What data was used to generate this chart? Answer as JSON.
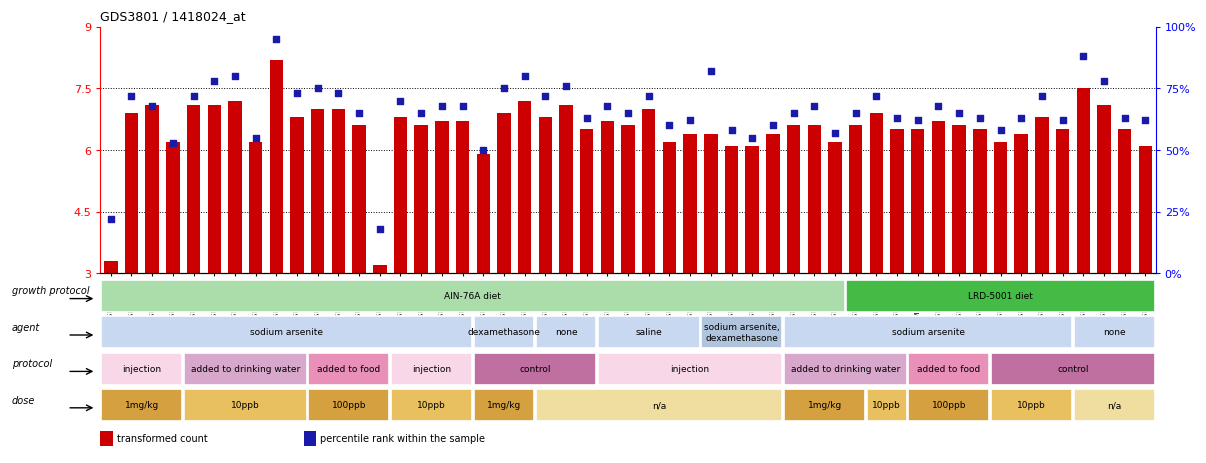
{
  "title": "GDS3801 / 1418024_at",
  "sample_ids": [
    "GSM279240",
    "GSM279245",
    "GSM279248",
    "GSM279250",
    "GSM279253",
    "GSM279234",
    "GSM279262",
    "GSM279269",
    "GSM279272",
    "GSM279231",
    "GSM279243",
    "GSM279261",
    "GSM279263",
    "GSM279230",
    "GSM279249",
    "GSM279258",
    "GSM279265",
    "GSM279273",
    "GSM279233",
    "GSM279236",
    "GSM279239",
    "GSM279247",
    "GSM279252",
    "GSM279232",
    "GSM279235",
    "GSM279264",
    "GSM279270",
    "GSM279275",
    "GSM279221",
    "GSM279260",
    "GSM279267",
    "GSM279271",
    "GSM279238",
    "GSM279241",
    "GSM279255",
    "GSM279268",
    "GSM279222",
    "GSM279226",
    "GSM279246",
    "GSM279249b",
    "GSM279266",
    "GSM279254",
    "GSM279257",
    "GSM279223",
    "GSM279228",
    "GSM279237",
    "GSM279242",
    "GSM279244",
    "GSM279225",
    "GSM279229",
    "GSM279256"
  ],
  "bar_values": [
    3.3,
    6.9,
    7.1,
    6.2,
    7.1,
    7.1,
    7.2,
    6.2,
    8.2,
    6.8,
    7.0,
    7.0,
    6.6,
    3.2,
    6.8,
    6.6,
    6.7,
    6.7,
    5.9,
    6.9,
    7.2,
    6.8,
    7.1,
    6.5,
    6.7,
    6.6,
    7.0,
    6.2,
    6.4,
    6.4,
    6.1,
    6.1,
    6.4,
    6.6,
    6.6,
    6.2,
    6.6,
    6.9,
    6.5,
    6.5,
    6.7,
    6.6,
    6.5,
    6.2,
    6.4,
    6.8,
    6.5,
    7.5,
    7.1,
    6.5,
    6.1
  ],
  "dot_values": [
    22,
    72,
    68,
    53,
    72,
    78,
    80,
    55,
    95,
    73,
    75,
    73,
    65,
    18,
    70,
    65,
    68,
    68,
    50,
    75,
    80,
    72,
    76,
    63,
    68,
    65,
    72,
    60,
    62,
    82,
    58,
    55,
    60,
    65,
    68,
    57,
    65,
    72,
    63,
    62,
    68,
    65,
    63,
    58,
    63,
    72,
    62,
    88,
    78,
    63,
    62
  ],
  "bar_color": "#cc0000",
  "dot_color": "#1a1aaa",
  "ylim_left": [
    3,
    9
  ],
  "ylim_right": [
    0,
    100
  ],
  "yticks_left": [
    3,
    4.5,
    6,
    7.5,
    9
  ],
  "yticks_right": [
    0,
    25,
    50,
    75,
    100
  ],
  "ytick_labels_right": [
    "0%",
    "25%",
    "50%",
    "75%",
    "100%"
  ],
  "hlines": [
    4.5,
    6.0,
    7.5
  ],
  "growth_protocol_row": {
    "label": "growth protocol",
    "segments": [
      {
        "text": "AIN-76A diet",
        "start": 0,
        "end": 36,
        "color": "#aaddaa"
      },
      {
        "text": "LRD-5001 diet",
        "start": 36,
        "end": 51,
        "color": "#44bb44"
      }
    ]
  },
  "agent_row": {
    "label": "agent",
    "segments": [
      {
        "text": "sodium arsenite",
        "start": 0,
        "end": 18,
        "color": "#c8d8f0"
      },
      {
        "text": "dexamethasone",
        "start": 18,
        "end": 21,
        "color": "#c8d8f0"
      },
      {
        "text": "none",
        "start": 21,
        "end": 24,
        "color": "#c8d8f0"
      },
      {
        "text": "saline",
        "start": 24,
        "end": 29,
        "color": "#c8d8f0"
      },
      {
        "text": "sodium arsenite,\ndexamethasone",
        "start": 29,
        "end": 33,
        "color": "#b0c4de"
      },
      {
        "text": "sodium arsenite",
        "start": 33,
        "end": 47,
        "color": "#c8d8f0"
      },
      {
        "text": "none",
        "start": 47,
        "end": 51,
        "color": "#c8d8f0"
      }
    ]
  },
  "protocol_row": {
    "label": "protocol",
    "segments": [
      {
        "text": "injection",
        "start": 0,
        "end": 4,
        "color": "#f8d8e8"
      },
      {
        "text": "added to drinking water",
        "start": 4,
        "end": 10,
        "color": "#d8a8cc"
      },
      {
        "text": "added to food",
        "start": 10,
        "end": 14,
        "color": "#e890b8"
      },
      {
        "text": "injection",
        "start": 14,
        "end": 18,
        "color": "#f8d8e8"
      },
      {
        "text": "control",
        "start": 18,
        "end": 24,
        "color": "#c070a0"
      },
      {
        "text": "injection",
        "start": 24,
        "end": 33,
        "color": "#f8d8e8"
      },
      {
        "text": "added to drinking water",
        "start": 33,
        "end": 39,
        "color": "#d8a8cc"
      },
      {
        "text": "added to food",
        "start": 39,
        "end": 43,
        "color": "#e890b8"
      },
      {
        "text": "control",
        "start": 43,
        "end": 51,
        "color": "#c070a0"
      }
    ]
  },
  "dose_row": {
    "label": "dose",
    "segments": [
      {
        "text": "1mg/kg",
        "start": 0,
        "end": 4,
        "color": "#d4a040"
      },
      {
        "text": "10ppb",
        "start": 4,
        "end": 10,
        "color": "#e8c060"
      },
      {
        "text": "100ppb",
        "start": 10,
        "end": 14,
        "color": "#d4a040"
      },
      {
        "text": "10ppb",
        "start": 14,
        "end": 18,
        "color": "#e8c060"
      },
      {
        "text": "1mg/kg",
        "start": 18,
        "end": 21,
        "color": "#d4a040"
      },
      {
        "text": "n/a",
        "start": 21,
        "end": 33,
        "color": "#f0dda0"
      },
      {
        "text": "1mg/kg",
        "start": 33,
        "end": 37,
        "color": "#d4a040"
      },
      {
        "text": "10ppb",
        "start": 37,
        "end": 39,
        "color": "#e8c060"
      },
      {
        "text": "100ppb",
        "start": 39,
        "end": 43,
        "color": "#d4a040"
      },
      {
        "text": "10ppb",
        "start": 43,
        "end": 47,
        "color": "#e8c060"
      },
      {
        "text": "n/a",
        "start": 47,
        "end": 51,
        "color": "#f0dda0"
      }
    ]
  }
}
